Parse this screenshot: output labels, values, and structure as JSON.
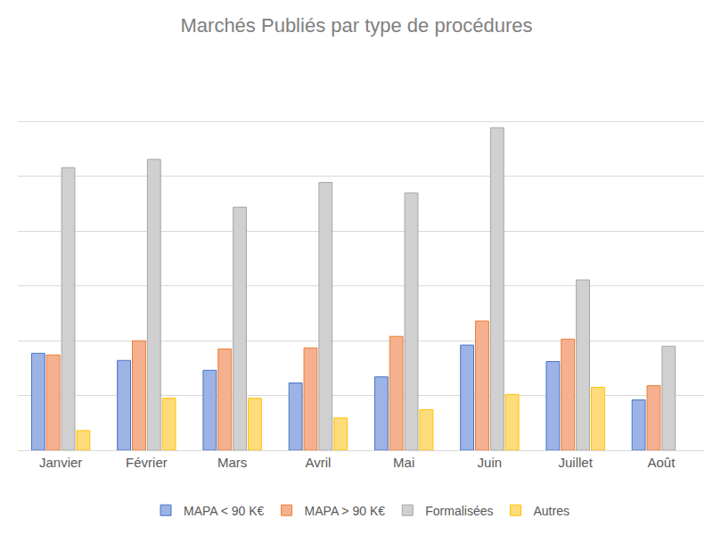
{
  "chart_data": {
    "type": "bar",
    "title": "Marchés Publiés par type de procédures",
    "categories": [
      "Janvier",
      "Février",
      "Mars",
      "Avril",
      "Mai",
      "Juin",
      "Juillet",
      "Août"
    ],
    "series": [
      {
        "name": "MAPA < 90 K€",
        "color": "#9db3e6",
        "values": [
          17.7,
          16.4,
          14.6,
          12.3,
          13.4,
          19.2,
          16.2,
          9.2
        ]
      },
      {
        "name": "MAPA > 90 K€",
        "color": "#f5b08f",
        "values": [
          17.4,
          20.0,
          18.5,
          18.7,
          20.8,
          23.6,
          20.3,
          11.8
        ]
      },
      {
        "name": "Formalisées",
        "color": "#d0d0d0",
        "values": [
          51.6,
          53.1,
          44.4,
          48.9,
          47.0,
          58.9,
          31.1,
          19.0
        ]
      },
      {
        "name": "Autres",
        "color": "#ffdc7a",
        "values": [
          3.6,
          9.5,
          9.5,
          5.9,
          7.4,
          10.2,
          11.5,
          null
        ]
      }
    ],
    "ylim": [
      0,
      70
    ],
    "yticks": [
      0,
      10,
      20,
      30,
      40,
      50,
      60,
      70
    ],
    "grid": true,
    "legend": "bottom",
    "tick_labels": "x"
  }
}
